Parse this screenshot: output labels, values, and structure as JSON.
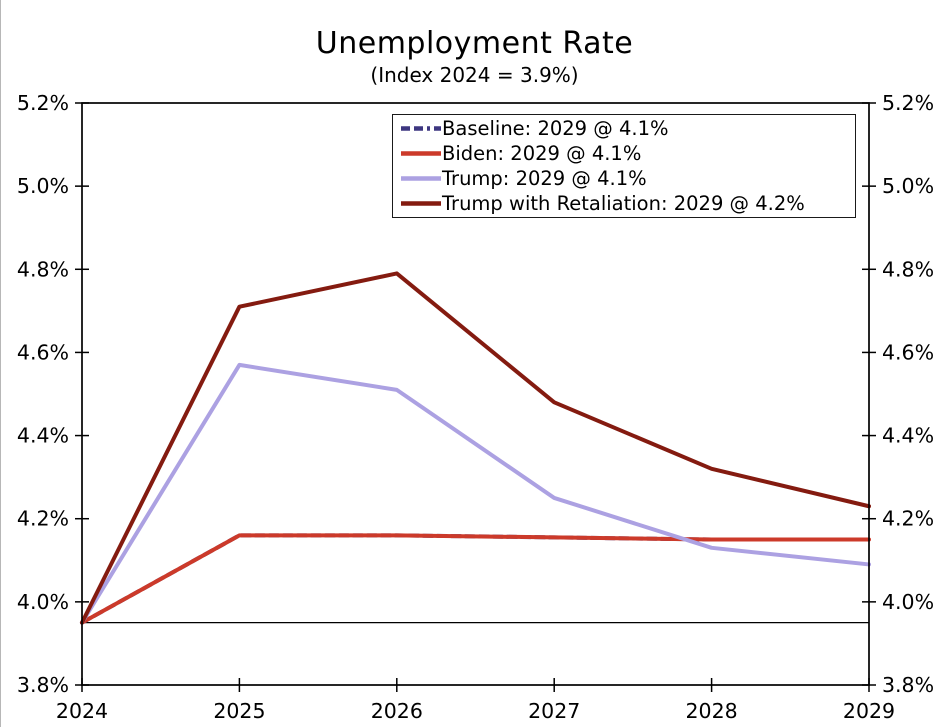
{
  "chart_data": {
    "type": "line",
    "title": "Unemployment Rate",
    "subtitle": "(Index 2024 = 3.9%)",
    "x": [
      2024,
      2025,
      2026,
      2027,
      2028,
      2029
    ],
    "x_tick_labels": [
      "2024",
      "2025",
      "2026",
      "2027",
      "2028",
      "2029"
    ],
    "ylim": [
      3.8,
      5.2
    ],
    "y_ticks": [
      3.8,
      4.0,
      4.2,
      4.4,
      4.6,
      4.8,
      5.0,
      5.2
    ],
    "y_tick_labels": [
      "3.8%",
      "4.0%",
      "4.2%",
      "4.4%",
      "4.6%",
      "4.8%",
      "5.0%",
      "5.2%"
    ],
    "grid": false,
    "axis_color": "#000000",
    "legend_position": "inside-top-center",
    "reference_line": {
      "value": 3.95,
      "color": "#000000",
      "note": "horizontal line at 2024 starting value"
    },
    "series": [
      {
        "name": "Baseline",
        "label": "Baseline: 2029 @ 4.1%",
        "color": "#3D3680",
        "dash": "dashed",
        "values": [
          3.95,
          4.16,
          4.16,
          4.155,
          4.15,
          4.15
        ]
      },
      {
        "name": "Biden",
        "label": "Biden: 2029 @ 4.1%",
        "color": "#CC3A2A",
        "dash": "solid",
        "values": [
          3.95,
          4.16,
          4.16,
          4.155,
          4.15,
          4.15
        ]
      },
      {
        "name": "Trump",
        "label": "Trump: 2029 @ 4.1%",
        "color": "#ACA1E2",
        "dash": "solid",
        "values": [
          3.95,
          4.57,
          4.51,
          4.25,
          4.13,
          4.09
        ]
      },
      {
        "name": "Trump with Retaliation",
        "label": "Trump with Retaliation: 2029 @ 4.2%",
        "color": "#841B10",
        "dash": "solid",
        "values": [
          3.95,
          4.71,
          4.79,
          4.48,
          4.32,
          4.23
        ]
      }
    ]
  }
}
